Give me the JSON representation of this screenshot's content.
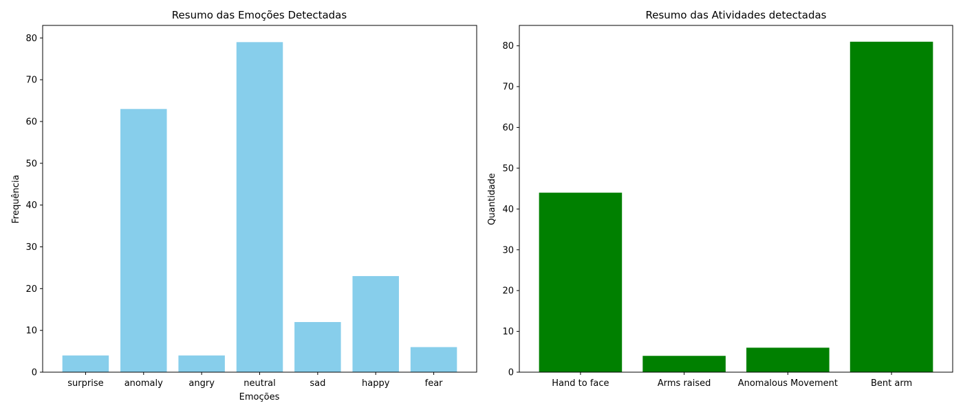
{
  "chart_data": [
    {
      "type": "bar",
      "title": "Resumo das Emoções Detectadas",
      "xlabel": "Emoções",
      "ylabel": "Frequência",
      "categories": [
        "surprise",
        "anomaly",
        "angry",
        "neutral",
        "sad",
        "happy",
        "fear"
      ],
      "values": [
        4,
        63,
        4,
        79,
        12,
        23,
        6
      ],
      "ylim": [
        0,
        83
      ],
      "yticks": [
        0,
        10,
        20,
        30,
        40,
        50,
        60,
        70,
        80
      ],
      "grid": false,
      "color": "#87ceeb"
    },
    {
      "type": "bar",
      "title": "Resumo das Atividades detectadas",
      "xlabel": "",
      "ylabel": "Quantidade",
      "categories": [
        "Hand to face",
        "Arms raised",
        "Anomalous Movement",
        "Bent arm"
      ],
      "values": [
        44,
        4,
        6,
        81
      ],
      "ylim": [
        0,
        85
      ],
      "yticks": [
        0,
        10,
        20,
        30,
        40,
        50,
        60,
        70,
        80
      ],
      "grid": false,
      "color": "#008000"
    }
  ]
}
